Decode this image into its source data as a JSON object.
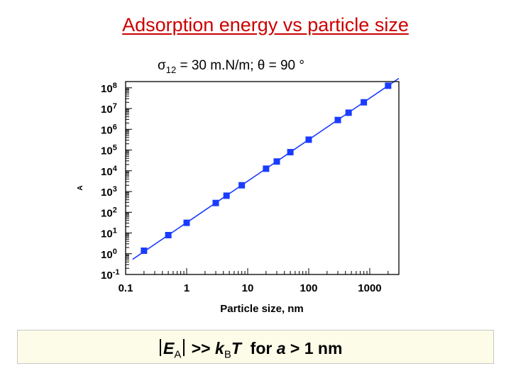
{
  "title": "Adsorption energy vs particle size",
  "subtitle": {
    "sigma": "σ",
    "sigma_sub": "12",
    "rest": " = 30 m.N/m; θ = 90 °"
  },
  "bottom_note": {
    "energy_symbol": "E",
    "energy_sub": "A",
    "relation": ">>",
    "k": "k",
    "k_sub": "B",
    "t": "T",
    "for_text": "for",
    "a": "a",
    "cond": "> 1 nm"
  },
  "colors": {
    "title": "#cc0000",
    "marker": "#1a3cff",
    "line": "#1a3cff",
    "box_bg": "#fcfce8"
  },
  "chart_data": {
    "type": "scatter",
    "title": "",
    "xlabel": "Particle size, nm",
    "ylabel": "A",
    "x_scale": "log",
    "y_scale": "log",
    "xlim": [
      0.1,
      3000
    ],
    "ylim": [
      0.1,
      200000000
    ],
    "x_ticks": [
      {
        "value": 0.1,
        "label": "0.1"
      },
      {
        "value": 1,
        "label": "1"
      },
      {
        "value": 10,
        "label": "10"
      },
      {
        "value": 100,
        "label": "100"
      },
      {
        "value": 1000,
        "label": "1000"
      }
    ],
    "y_ticks": [
      {
        "value": 0.1,
        "base": "10",
        "exp": "-1"
      },
      {
        "value": 1,
        "base": "10",
        "exp": "0"
      },
      {
        "value": 10,
        "base": "10",
        "exp": "1"
      },
      {
        "value": 100,
        "base": "10",
        "exp": "2"
      },
      {
        "value": 1000,
        "base": "10",
        "exp": "3"
      },
      {
        "value": 10000,
        "base": "10",
        "exp": "4"
      },
      {
        "value": 100000,
        "base": "10",
        "exp": "5"
      },
      {
        "value": 1000000,
        "base": "10",
        "exp": "6"
      },
      {
        "value": 10000000,
        "base": "10",
        "exp": "7"
      },
      {
        "value": 100000000,
        "base": "10",
        "exp": "8"
      }
    ],
    "grid": false,
    "series": [
      {
        "points": [
          {
            "x": 0.2,
            "y": 1.4
          },
          {
            "x": 0.5,
            "y": 7.9
          },
          {
            "x": 1,
            "y": 31
          },
          {
            "x": 3,
            "y": 280
          },
          {
            "x": 4.5,
            "y": 630
          },
          {
            "x": 8,
            "y": 2000
          },
          {
            "x": 20,
            "y": 12600
          },
          {
            "x": 30,
            "y": 28000
          },
          {
            "x": 50,
            "y": 79000
          },
          {
            "x": 100,
            "y": 316000
          },
          {
            "x": 300,
            "y": 2800000
          },
          {
            "x": 450,
            "y": 6300000
          },
          {
            "x": 800,
            "y": 20000000
          },
          {
            "x": 2000,
            "y": 126000000
          }
        ]
      }
    ],
    "fit_line": {
      "x_start": 0.13,
      "x_end": 3000,
      "slope_log": 2,
      "intercept_log": 1.5
    }
  }
}
